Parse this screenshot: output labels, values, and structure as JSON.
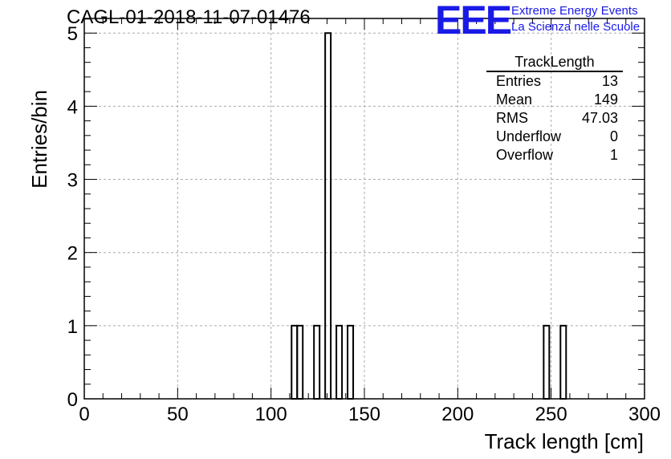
{
  "title": "CAGL-01-2018-11-07-01476",
  "logo": {
    "mark": "EEE",
    "line1": "Extreme Energy Events",
    "line2": "La Scienza nelle Scuole",
    "color": "#1a1ae6"
  },
  "stats": {
    "name": "TrackLength",
    "rows": [
      {
        "label": "Entries",
        "value": "13"
      },
      {
        "label": "Mean",
        "value": "149"
      },
      {
        "label": "RMS",
        "value": "47.03"
      },
      {
        "label": "Underflow",
        "value": "0"
      },
      {
        "label": "Overflow",
        "value": "1"
      }
    ]
  },
  "chart_data": {
    "type": "bar",
    "title": "CAGL-01-2018-11-07-01476",
    "xlabel": "Track length [cm]",
    "ylabel": "Entries/bin",
    "xlim": [
      0,
      300
    ],
    "ylim": [
      0,
      5.2
    ],
    "grid": true,
    "x_ticks": [
      "0",
      "50",
      "100",
      "150",
      "200",
      "250",
      "300"
    ],
    "y_ticks": [
      "0",
      "1",
      "2",
      "3",
      "4",
      "5"
    ],
    "bin_width": 3,
    "bins": [
      {
        "x": 111,
        "value": 1
      },
      {
        "x": 114,
        "value": 1
      },
      {
        "x": 123,
        "value": 1
      },
      {
        "x": 129,
        "value": 5
      },
      {
        "x": 135,
        "value": 1
      },
      {
        "x": 141,
        "value": 1
      },
      {
        "x": 246,
        "value": 1
      },
      {
        "x": 255,
        "value": 1
      }
    ]
  }
}
